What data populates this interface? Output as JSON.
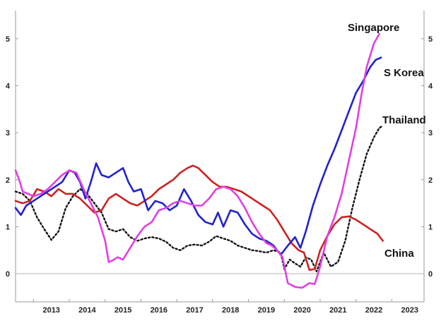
{
  "chart_data": {
    "type": "line",
    "xlim": [
      2012.5,
      2023.9
    ],
    "ylim": [
      -0.6,
      5.6
    ],
    "y_ticks": [
      0,
      1,
      2,
      3,
      4,
      5
    ],
    "x_ticks": [
      2013,
      2014,
      2015,
      2016,
      2017,
      2018,
      2019,
      2020,
      2021,
      2022,
      2023
    ],
    "grid": false,
    "zero_line": true,
    "series": [
      {
        "name": "Singapore",
        "color": "#e040e0",
        "x": [
          2012.5,
          2012.6,
          2012.7,
          2012.85,
          2013.0,
          2013.2,
          2013.4,
          2013.6,
          2013.8,
          2014.0,
          2014.2,
          2014.4,
          2014.6,
          2014.8,
          2015.0,
          2015.1,
          2015.2,
          2015.35,
          2015.5,
          2015.7,
          2015.9,
          2016.1,
          2016.3,
          2016.5,
          2016.7,
          2016.9,
          2017.1,
          2017.3,
          2017.5,
          2017.7,
          2017.9,
          2018.1,
          2018.3,
          2018.5,
          2018.7,
          2018.9,
          2019.1,
          2019.3,
          2019.5,
          2019.65,
          2019.8,
          2019.95,
          2020.1,
          2020.3,
          2020.5,
          2020.7,
          2020.85,
          2021.0,
          2021.2,
          2021.4,
          2021.6,
          2021.8,
          2022.0,
          2022.15,
          2022.3,
          2022.5,
          2022.65
        ],
        "values": [
          2.2,
          2.0,
          1.75,
          1.7,
          1.65,
          1.7,
          1.8,
          1.95,
          2.1,
          2.2,
          2.15,
          1.8,
          1.5,
          1.2,
          0.7,
          0.25,
          0.28,
          0.35,
          0.3,
          0.55,
          0.8,
          1.0,
          1.1,
          1.35,
          1.4,
          1.5,
          1.55,
          1.5,
          1.45,
          1.45,
          1.6,
          1.8,
          1.85,
          1.8,
          1.65,
          1.4,
          1.1,
          0.85,
          0.65,
          0.6,
          0.5,
          0.35,
          -0.2,
          -0.28,
          -0.3,
          -0.2,
          -0.22,
          0.15,
          0.8,
          1.2,
          1.7,
          2.4,
          3.1,
          3.8,
          4.4,
          4.9,
          5.1
        ]
      },
      {
        "name": "S Korea",
        "color": "#2222cc",
        "x": [
          2012.5,
          2012.65,
          2012.8,
          2013.0,
          2013.2,
          2013.4,
          2013.6,
          2013.8,
          2014.0,
          2014.15,
          2014.3,
          2014.45,
          2014.6,
          2014.75,
          2014.9,
          2015.1,
          2015.3,
          2015.5,
          2015.65,
          2015.8,
          2016.0,
          2016.2,
          2016.4,
          2016.6,
          2016.8,
          2017.0,
          2017.2,
          2017.4,
          2017.6,
          2017.8,
          2018.0,
          2018.15,
          2018.3,
          2018.5,
          2018.7,
          2018.9,
          2019.1,
          2019.3,
          2019.5,
          2019.7,
          2019.9,
          2020.1,
          2020.3,
          2020.45,
          2020.6,
          2020.8,
          2021.0,
          2021.2,
          2021.4,
          2021.6,
          2021.8,
          2022.0,
          2022.2,
          2022.4,
          2022.55,
          2022.7
        ],
        "values": [
          1.4,
          1.25,
          1.45,
          1.55,
          1.65,
          1.75,
          1.85,
          1.95,
          2.2,
          2.15,
          1.95,
          1.6,
          1.95,
          2.35,
          2.1,
          2.05,
          2.15,
          2.25,
          1.95,
          1.75,
          1.8,
          1.35,
          1.55,
          1.5,
          1.35,
          1.45,
          1.8,
          1.55,
          1.25,
          1.1,
          1.05,
          1.3,
          1.0,
          1.35,
          1.3,
          1.05,
          0.85,
          0.75,
          0.7,
          0.6,
          0.4,
          0.6,
          0.78,
          0.55,
          0.9,
          1.45,
          1.9,
          2.3,
          2.65,
          3.05,
          3.45,
          3.85,
          4.1,
          4.4,
          4.55,
          4.6
        ]
      },
      {
        "name": "Thailand",
        "color": "#111111",
        "x": [
          2012.5,
          2012.7,
          2012.9,
          2013.1,
          2013.3,
          2013.5,
          2013.7,
          2013.9,
          2014.1,
          2014.3,
          2014.5,
          2014.7,
          2014.9,
          2015.1,
          2015.3,
          2015.5,
          2015.7,
          2015.9,
          2016.1,
          2016.3,
          2016.5,
          2016.7,
          2016.9,
          2017.1,
          2017.3,
          2017.5,
          2017.7,
          2017.9,
          2018.1,
          2018.3,
          2018.5,
          2018.7,
          2018.9,
          2019.1,
          2019.3,
          2019.5,
          2019.7,
          2019.9,
          2020.0,
          2020.15,
          2020.3,
          2020.45,
          2020.6,
          2020.75,
          2020.9,
          2021.1,
          2021.3,
          2021.5,
          2021.7,
          2021.9,
          2022.1,
          2022.3,
          2022.5,
          2022.65,
          2022.75
        ],
        "values": [
          1.75,
          1.7,
          1.55,
          1.2,
          0.95,
          0.72,
          0.9,
          1.4,
          1.65,
          1.8,
          1.7,
          1.5,
          1.3,
          0.95,
          0.9,
          0.95,
          0.78,
          0.7,
          0.75,
          0.78,
          0.75,
          0.68,
          0.55,
          0.5,
          0.6,
          0.62,
          0.6,
          0.68,
          0.8,
          0.75,
          0.7,
          0.6,
          0.55,
          0.5,
          0.48,
          0.45,
          0.5,
          0.45,
          0.1,
          0.3,
          0.22,
          0.15,
          0.35,
          0.3,
          0.05,
          0.45,
          0.15,
          0.25,
          0.7,
          1.4,
          2.0,
          2.55,
          2.9,
          3.1,
          3.15
        ]
      },
      {
        "name": "China",
        "color": "#cc2222",
        "x": [
          2012.5,
          2012.7,
          2012.9,
          2013.1,
          2013.3,
          2013.5,
          2013.7,
          2013.9,
          2014.1,
          2014.3,
          2014.5,
          2014.7,
          2014.9,
          2015.1,
          2015.3,
          2015.5,
          2015.7,
          2015.9,
          2016.1,
          2016.3,
          2016.5,
          2016.7,
          2016.9,
          2017.1,
          2017.3,
          2017.45,
          2017.6,
          2017.8,
          2018.0,
          2018.2,
          2018.4,
          2018.6,
          2018.8,
          2019.0,
          2019.2,
          2019.4,
          2019.6,
          2019.8,
          2020.0,
          2020.2,
          2020.4,
          2020.55,
          2020.7,
          2020.85,
          2021.0,
          2021.2,
          2021.4,
          2021.6,
          2021.8,
          2022.0,
          2022.2,
          2022.4,
          2022.6,
          2022.75
        ],
        "values": [
          1.55,
          1.5,
          1.55,
          1.8,
          1.75,
          1.65,
          1.8,
          1.7,
          1.7,
          1.6,
          1.45,
          1.3,
          1.35,
          1.6,
          1.7,
          1.6,
          1.5,
          1.45,
          1.55,
          1.65,
          1.8,
          1.9,
          2.0,
          2.15,
          2.25,
          2.3,
          2.25,
          2.1,
          1.95,
          1.85,
          1.85,
          1.8,
          1.75,
          1.65,
          1.55,
          1.45,
          1.35,
          1.15,
          0.9,
          0.65,
          0.5,
          0.45,
          0.08,
          0.1,
          0.5,
          0.8,
          1.05,
          1.2,
          1.22,
          1.15,
          1.05,
          0.95,
          0.85,
          0.7
        ]
      }
    ]
  }
}
